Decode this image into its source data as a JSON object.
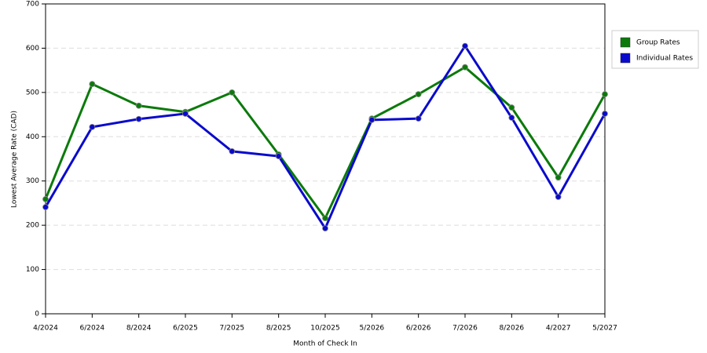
{
  "chart_data": {
    "type": "line",
    "x_label": "Month of Check In",
    "y_label": "Lowest Average Rate (CAD)",
    "categories": [
      "4/2024",
      "6/2024",
      "8/2024",
      "6/2025",
      "7/2025",
      "8/2025",
      "10/2025",
      "5/2026",
      "6/2026",
      "7/2026",
      "8/2026",
      "4/2027",
      "5/2027"
    ],
    "series": [
      {
        "name": "Group Rates",
        "color": "#0b7a0b",
        "values": [
          259,
          519,
          470,
          456,
          500,
          360,
          216,
          441,
          496,
          557,
          466,
          308,
          496
        ]
      },
      {
        "name": "Individual Rates",
        "color": "#0a0acc",
        "values": [
          241,
          422,
          440,
          452,
          367,
          356,
          193,
          438,
          441,
          605,
          443,
          264,
          452
        ]
      }
    ],
    "ylim": [
      0,
      700
    ],
    "yticks": [
      0,
      100,
      200,
      300,
      400,
      500,
      600,
      700
    ],
    "grid": true
  }
}
